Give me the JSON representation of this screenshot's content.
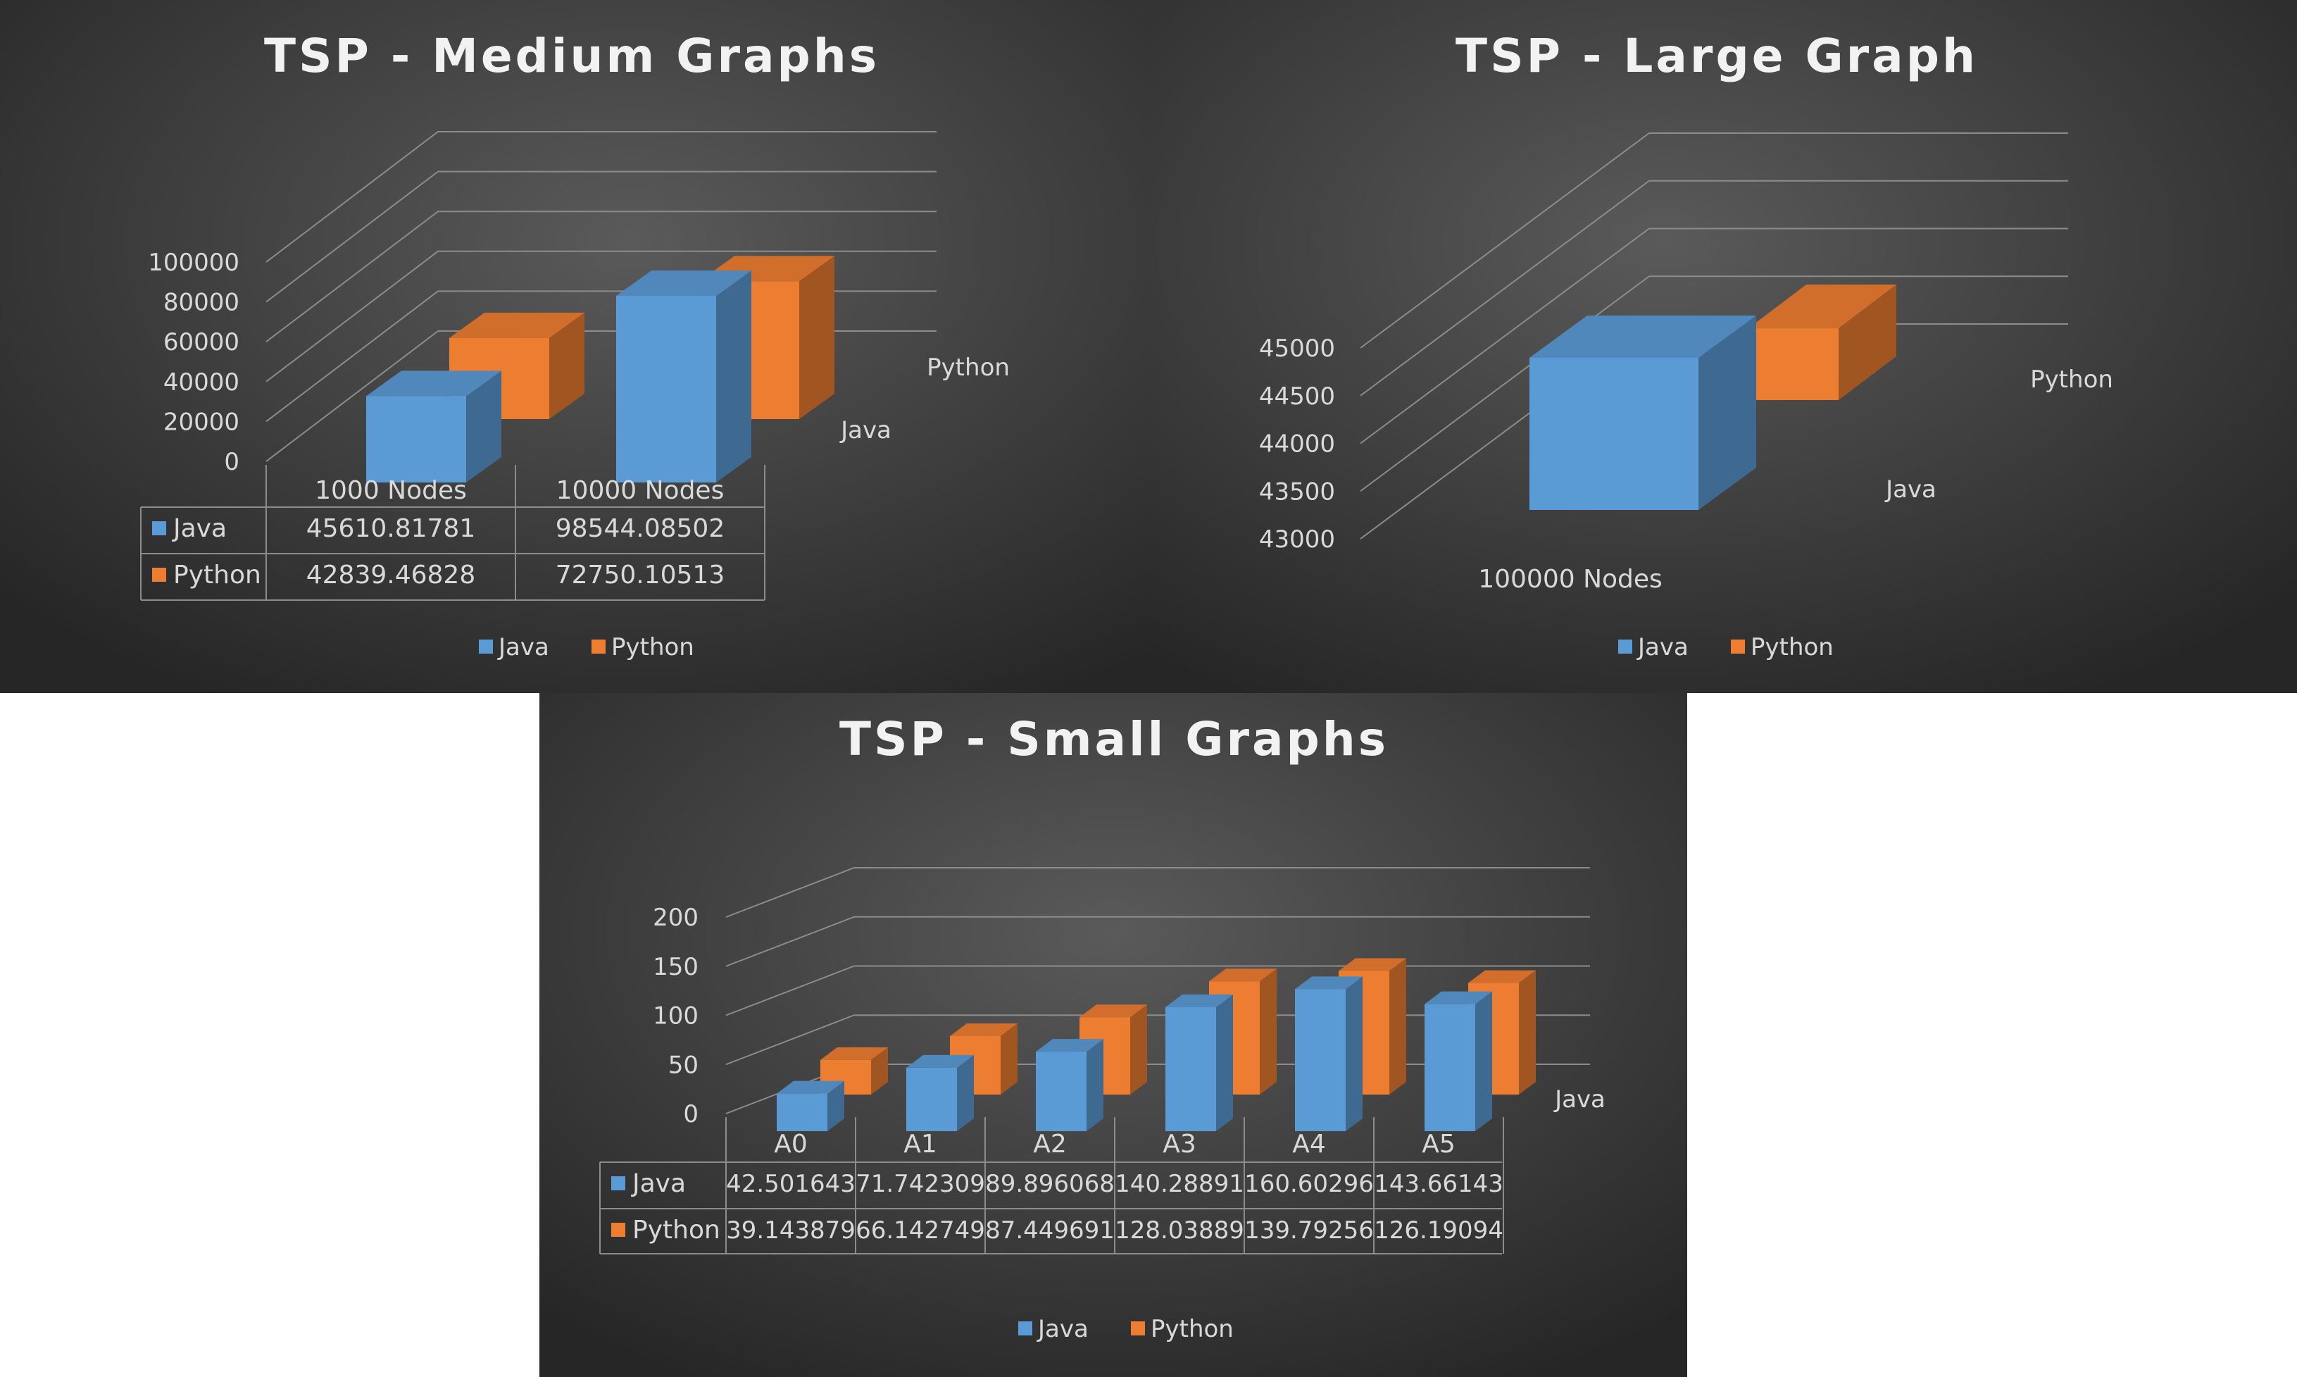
{
  "colors": {
    "java": "#5b9bd5",
    "python": "#ed7d31",
    "grid": "#8c8c8c",
    "text": "#d9d9d9",
    "title": "#f2f2f2"
  },
  "legend": {
    "java": "Java",
    "python": "Python"
  },
  "chart_data": [
    {
      "type": "bar",
      "title": "TSP  - Medium Graphs",
      "categories": [
        "1000 Nodes",
        "10000 Nodes"
      ],
      "series": [
        {
          "name": "Java",
          "values": [
            45610.81781,
            98544.08502
          ],
          "labels": [
            "45610.81781",
            "98544.08502"
          ]
        },
        {
          "name": "Python",
          "values": [
            42839.46828,
            72750.10513
          ],
          "labels": [
            "42839.46828",
            "72750.10513"
          ]
        }
      ],
      "depth_labels": [
        "Java",
        "Python"
      ],
      "yticks": [
        "0",
        "20000",
        "40000",
        "60000",
        "80000",
        "100000"
      ],
      "ylim": [
        0,
        100000
      ],
      "data_table": true,
      "legend_position": "bottom"
    },
    {
      "type": "bar",
      "title": "TSP - Large Graph",
      "categories": [
        "100000 Nodes"
      ],
      "series": [
        {
          "name": "Java",
          "values": [
            44900
          ]
        },
        {
          "name": "Python",
          "values": [
            43900
          ]
        }
      ],
      "depth_labels": [
        "Java",
        "Python"
      ],
      "yticks": [
        "43000",
        "43500",
        "44000",
        "44500",
        "45000"
      ],
      "ylim": [
        43000,
        45000
      ],
      "data_table": false,
      "legend_position": "bottom"
    },
    {
      "type": "bar",
      "title": "TSP - Small Graphs",
      "categories": [
        "A0",
        "A1",
        "A2",
        "A3",
        "A4",
        "A5"
      ],
      "series": [
        {
          "name": "Java",
          "values": [
            42.501643,
            71.742309,
            89.896068,
            140.28891,
            160.60296,
            143.66143
          ],
          "labels": [
            "42.501643",
            "71.742309",
            "89.896068",
            "140.28891",
            "160.60296",
            "143.66143"
          ]
        },
        {
          "name": "Python",
          "values": [
            39.143879,
            66.142749,
            87.449691,
            128.03889,
            139.79256,
            126.19094
          ],
          "labels": [
            "39.143879",
            "66.142749",
            "87.449691",
            "128.03889",
            "139.79256",
            "126.19094"
          ]
        }
      ],
      "depth_labels": [
        "Java"
      ],
      "yticks": [
        "0",
        "50",
        "100",
        "150",
        "200"
      ],
      "ylim": [
        0,
        200
      ],
      "data_table": true,
      "legend_position": "bottom"
    }
  ]
}
